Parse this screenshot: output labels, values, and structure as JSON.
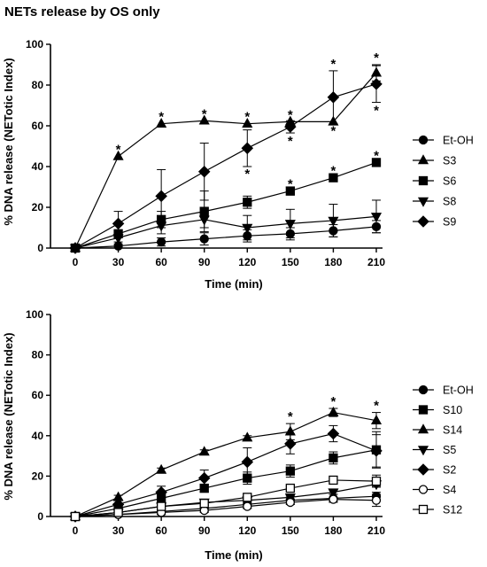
{
  "page_title": "NETs release by OS only",
  "chart_data": [
    {
      "type": "line",
      "title": "NETs release by OS only",
      "xlabel": "Time (min)",
      "ylabel": "% DNA release (NETotic Index)",
      "xlim": [
        0,
        210
      ],
      "ylim": [
        0,
        100
      ],
      "xticks": [
        "0",
        "30",
        "60",
        "90",
        "120",
        "150",
        "180",
        "210"
      ],
      "yticks": [
        "0",
        "20",
        "40",
        "60",
        "80",
        "100"
      ],
      "x": [
        0,
        30,
        60,
        90,
        120,
        150,
        180,
        210
      ],
      "legend": "right",
      "series": [
        {
          "name": "Et-OH",
          "marker": "circle",
          "fill": "#000000",
          "values": [
            0,
            1,
            3,
            4.5,
            6,
            7,
            8.5,
            10.5
          ],
          "errors": [
            0,
            1,
            2,
            3,
            3,
            3,
            3,
            3
          ]
        },
        {
          "name": "S3",
          "marker": "triangle-up",
          "fill": "#000000",
          "values": [
            0,
            45,
            61,
            62.5,
            61,
            62,
            62,
            86
          ],
          "errors": [
            0,
            0,
            0,
            0,
            0,
            0,
            0,
            4
          ]
        },
        {
          "name": "S6",
          "marker": "square",
          "fill": "#000000",
          "values": [
            0,
            7,
            14,
            18,
            22.5,
            28,
            34.5,
            42
          ],
          "errors": [
            0,
            2,
            4,
            10,
            3,
            2,
            1,
            1
          ]
        },
        {
          "name": "S8",
          "marker": "triangle-down",
          "fill": "#000000",
          "values": [
            0,
            5,
            11,
            14,
            10,
            12,
            13.5,
            15.5
          ],
          "errors": [
            0,
            2,
            4,
            4,
            6,
            7,
            8,
            8
          ]
        },
        {
          "name": "S9",
          "marker": "diamond",
          "fill": "#000000",
          "values": [
            0,
            12,
            25.5,
            37.5,
            49,
            59.5,
            74,
            80.5
          ],
          "errors": [
            0,
            6,
            13,
            14,
            9,
            3,
            13,
            9
          ]
        }
      ],
      "annotations": [
        {
          "x": 30,
          "y": 45,
          "text": "*",
          "position": "above"
        },
        {
          "x": 60,
          "y": 61,
          "text": "*",
          "position": "above"
        },
        {
          "x": 90,
          "y": 62.5,
          "text": "*",
          "position": "above"
        },
        {
          "x": 120,
          "y": 61,
          "text": "*",
          "position": "above"
        },
        {
          "x": 120,
          "y": 40,
          "text": "*",
          "position": "below"
        },
        {
          "x": 150,
          "y": 62,
          "text": "*",
          "position": "above"
        },
        {
          "x": 150,
          "y": 56,
          "text": "*",
          "position": "below"
        },
        {
          "x": 150,
          "y": 28,
          "text": "*",
          "position": "above"
        },
        {
          "x": 180,
          "y": 87,
          "text": "*",
          "position": "above"
        },
        {
          "x": 180,
          "y": 61,
          "text": "*",
          "position": "below"
        },
        {
          "x": 180,
          "y": 34.5,
          "text": "*",
          "position": "above"
        },
        {
          "x": 210,
          "y": 90,
          "text": "*",
          "position": "above"
        },
        {
          "x": 210,
          "y": 71,
          "text": "*",
          "position": "below"
        },
        {
          "x": 210,
          "y": 42,
          "text": "*",
          "position": "above"
        }
      ]
    },
    {
      "type": "line",
      "title": "",
      "xlabel": "Time (min)",
      "ylabel": "% DNA release (NETotic Index)",
      "xlim": [
        0,
        210
      ],
      "ylim": [
        0,
        100
      ],
      "xticks": [
        "0",
        "30",
        "60",
        "90",
        "120",
        "150",
        "180",
        "210"
      ],
      "yticks": [
        "0",
        "20",
        "40",
        "60",
        "80",
        "100"
      ],
      "x": [
        0,
        30,
        60,
        90,
        120,
        150,
        180,
        210
      ],
      "legend": "right",
      "series": [
        {
          "name": "Et-OH",
          "marker": "circle",
          "fill": "#000000",
          "values": [
            0,
            1,
            2.5,
            4,
            6,
            8,
            9,
            10
          ],
          "errors": [
            0,
            1,
            1.5,
            1.5,
            2,
            2,
            2,
            2
          ]
        },
        {
          "name": "S10",
          "marker": "square",
          "fill": "#000000",
          "values": [
            0,
            4,
            9,
            14,
            19,
            22.5,
            29,
            33
          ],
          "errors": [
            0,
            1,
            2,
            2,
            3,
            3,
            3,
            9
          ]
        },
        {
          "name": "S14",
          "marker": "triangle-up",
          "fill": "#000000",
          "values": [
            0,
            9.5,
            23,
            32,
            39,
            42,
            51.5,
            47.5
          ],
          "errors": [
            0,
            1,
            1,
            1,
            1,
            4,
            2,
            4
          ]
        },
        {
          "name": "S5",
          "marker": "triangle-down",
          "fill": "#000000",
          "values": [
            0,
            2,
            5,
            7,
            8,
            9.5,
            12,
            16
          ],
          "errors": [
            0,
            1,
            1,
            1,
            1,
            1,
            1,
            1
          ]
        },
        {
          "name": "S2",
          "marker": "diamond",
          "fill": "#000000",
          "values": [
            0,
            6,
            12,
            19,
            27,
            36,
            41,
            32.5
          ],
          "errors": [
            0,
            2,
            3,
            4,
            7,
            5,
            4,
            8
          ]
        },
        {
          "name": "S4",
          "marker": "circle",
          "fill": "#ffffff",
          "values": [
            0,
            1,
            2,
            3,
            5,
            7,
            8.5,
            8
          ],
          "errors": [
            0,
            1,
            1,
            1,
            1,
            1,
            1,
            3
          ]
        },
        {
          "name": "S12",
          "marker": "square",
          "fill": "#ffffff",
          "values": [
            0,
            2,
            5,
            6.5,
            9.5,
            14,
            18,
            17.5
          ],
          "errors": [
            0,
            1,
            1,
            1,
            1,
            1,
            1,
            3
          ]
        }
      ],
      "annotations": [
        {
          "x": 150,
          "y": 46,
          "text": "*",
          "position": "above"
        },
        {
          "x": 180,
          "y": 53.5,
          "text": "*",
          "position": "above"
        },
        {
          "x": 210,
          "y": 51.5,
          "text": "*",
          "position": "above"
        }
      ]
    }
  ]
}
